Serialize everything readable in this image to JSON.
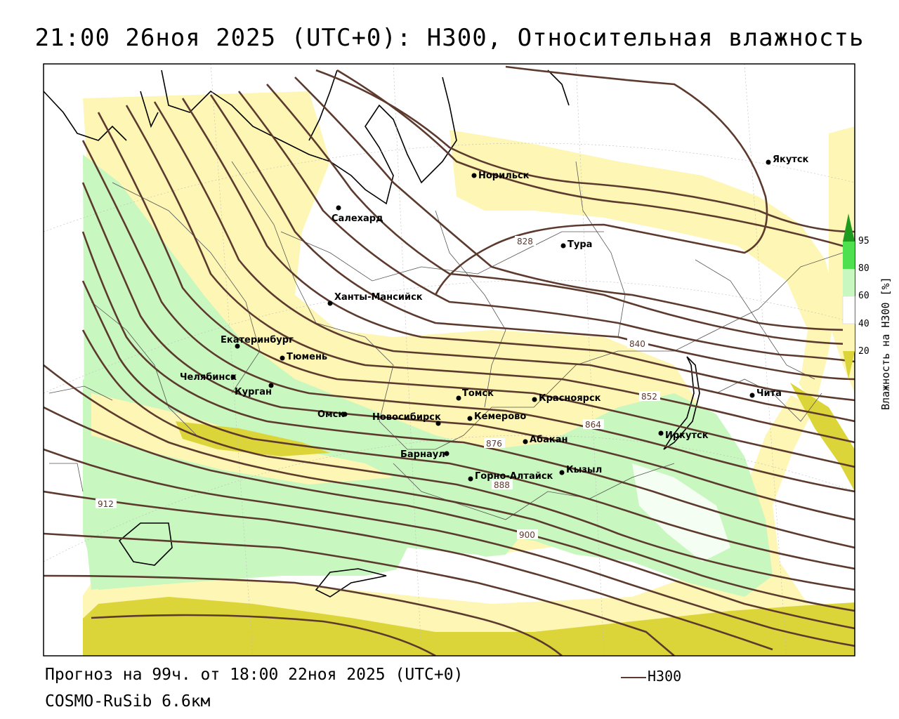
{
  "title": "21:00 26ноя 2025 (UTC+0): H300, Относительная влажность",
  "footer": {
    "forecast": "Прогноз на 99ч. от 18:00 22ноя 2025 (UTC+0)",
    "model": "COSMO-RuSib 6.6км"
  },
  "legend": {
    "contour_label": "H300",
    "contour_color": "#5c3a2e"
  },
  "colorbar": {
    "title": "Влажность на H300 [%]",
    "ticks": [
      "95",
      "80",
      "60",
      "40",
      "20"
    ],
    "colors": {
      "c20": "#fdf6b4",
      "c40": "#ffffff",
      "c60": "#c8f7c0",
      "c80": "#4fe04f",
      "c95": "#1e9a1e",
      "low": "#dcd53a"
    }
  },
  "cities": [
    {
      "name": "Якутск"
    },
    {
      "name": "Норильск"
    },
    {
      "name": "Салехард"
    },
    {
      "name": "Тура"
    },
    {
      "name": "Ханты-Мансийск"
    },
    {
      "name": "Екатеринбург"
    },
    {
      "name": "Тюмень"
    },
    {
      "name": "Челябинск"
    },
    {
      "name": "Курган"
    },
    {
      "name": "Омск"
    },
    {
      "name": "Новосибирск"
    },
    {
      "name": "Томск"
    },
    {
      "name": "Красноярск"
    },
    {
      "name": "Кемерово"
    },
    {
      "name": "Абакан"
    },
    {
      "name": "Барнаул"
    },
    {
      "name": "Горно-Алтайск"
    },
    {
      "name": "Кызыл"
    },
    {
      "name": "Иркутск"
    },
    {
      "name": "Чита"
    }
  ],
  "contour_labels": [
    "828",
    "840",
    "852",
    "864",
    "876",
    "888",
    "900",
    "912"
  ]
}
